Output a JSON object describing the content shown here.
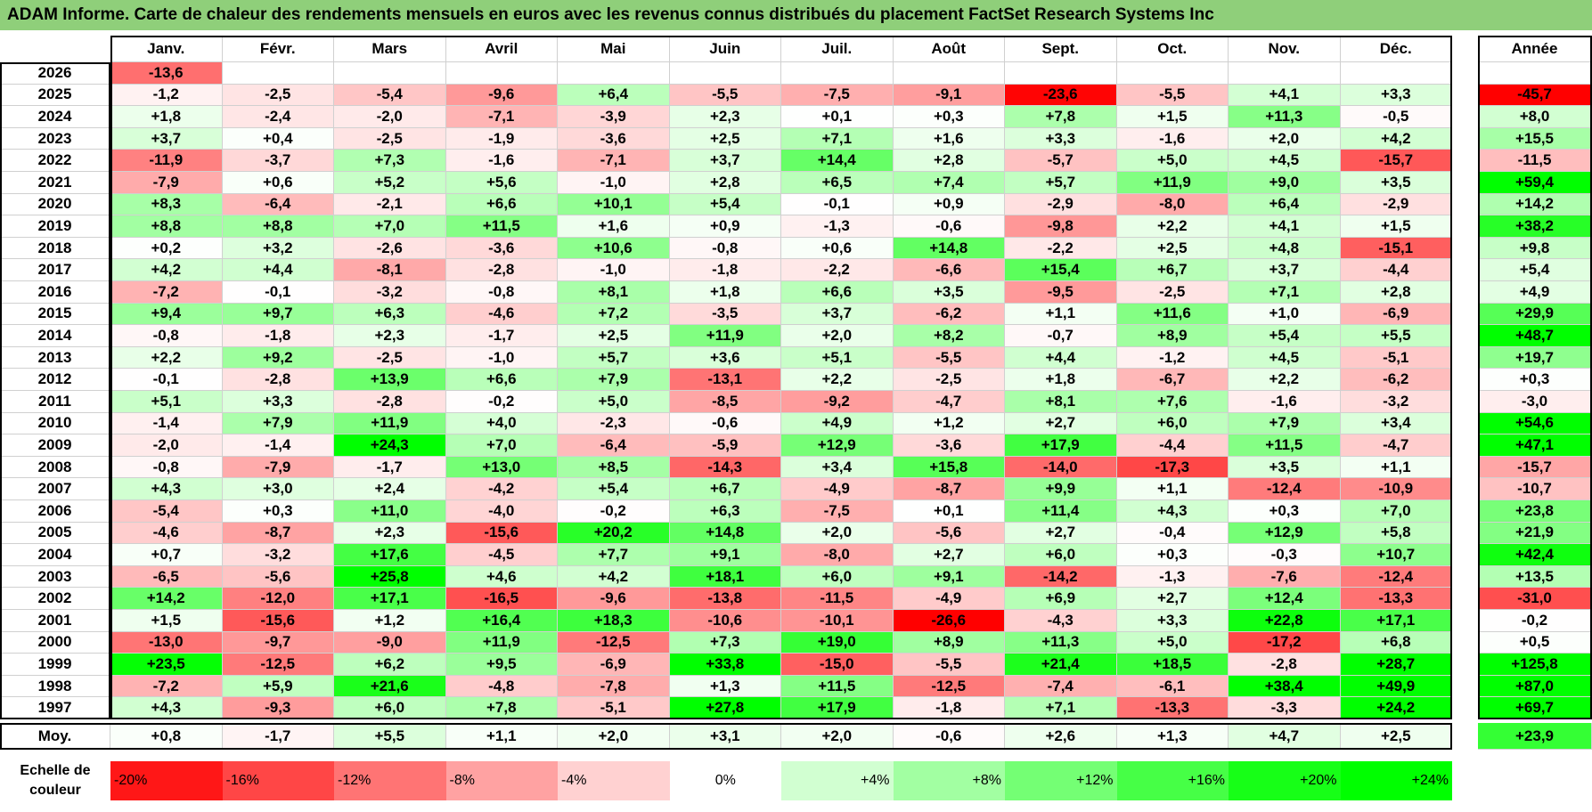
{
  "title": "ADAM Informe. Carte de chaleur des rendements mensuels en euros avec les revenus connus distribués du placement FactSet Research Systems Inc",
  "chart_data": {
    "type": "heatmap",
    "months": [
      "Janv.",
      "Févr.",
      "Mars",
      "Avril",
      "Mai",
      "Juin",
      "Juil.",
      "Août",
      "Sept.",
      "Oct.",
      "Nov.",
      "Déc."
    ],
    "annual_label": "Année",
    "rows": [
      {
        "year": "2026",
        "values": [
          "-13,6",
          "",
          "",
          "",
          "",
          "",
          "",
          "",
          "",
          "",
          "",
          ""
        ],
        "annual": ""
      },
      {
        "year": "2025",
        "values": [
          "-1,2",
          "-2,5",
          "-5,4",
          "-9,6",
          "+6,4",
          "-5,5",
          "-7,5",
          "-9,1",
          "-23,6",
          "-5,5",
          "+4,1",
          "+3,3"
        ],
        "annual": "-45,7"
      },
      {
        "year": "2024",
        "values": [
          "+1,8",
          "-2,4",
          "-2,0",
          "-7,1",
          "-3,9",
          "+2,3",
          "+0,1",
          "+0,3",
          "+7,8",
          "+1,5",
          "+11,3",
          "-0,5"
        ],
        "annual": "+8,0"
      },
      {
        "year": "2023",
        "values": [
          "+3,7",
          "+0,4",
          "-2,5",
          "-1,9",
          "-3,6",
          "+2,5",
          "+7,1",
          "+1,6",
          "+3,3",
          "-1,6",
          "+2,0",
          "+4,2"
        ],
        "annual": "+15,5"
      },
      {
        "year": "2022",
        "values": [
          "-11,9",
          "-3,7",
          "+7,3",
          "-1,6",
          "-7,1",
          "+3,7",
          "+14,4",
          "+2,8",
          "-5,7",
          "+5,0",
          "+4,5",
          "-15,7"
        ],
        "annual": "-11,5"
      },
      {
        "year": "2021",
        "values": [
          "-7,9",
          "+0,6",
          "+5,2",
          "+5,6",
          "-1,0",
          "+2,8",
          "+6,5",
          "+7,4",
          "+5,7",
          "+11,9",
          "+9,0",
          "+3,5"
        ],
        "annual": "+59,4"
      },
      {
        "year": "2020",
        "values": [
          "+8,3",
          "-6,4",
          "-2,1",
          "+6,6",
          "+10,1",
          "+5,4",
          "-0,1",
          "+0,9",
          "-2,9",
          "-8,0",
          "+6,4",
          "-2,9"
        ],
        "annual": "+14,2"
      },
      {
        "year": "2019",
        "values": [
          "+8,8",
          "+8,8",
          "+7,0",
          "+11,5",
          "+1,6",
          "+0,9",
          "-1,3",
          "-0,6",
          "-9,8",
          "+2,2",
          "+4,1",
          "+1,5"
        ],
        "annual": "+38,2"
      },
      {
        "year": "2018",
        "values": [
          "+0,2",
          "+3,2",
          "-2,6",
          "-3,6",
          "+10,6",
          "-0,8",
          "+0,6",
          "+14,8",
          "-2,2",
          "+2,5",
          "+4,8",
          "-15,1"
        ],
        "annual": "+9,8"
      },
      {
        "year": "2017",
        "values": [
          "+4,2",
          "+4,4",
          "-8,1",
          "-2,8",
          "-1,0",
          "-1,8",
          "-2,2",
          "-6,6",
          "+15,4",
          "+6,7",
          "+3,7",
          "-4,4"
        ],
        "annual": "+5,4"
      },
      {
        "year": "2016",
        "values": [
          "-7,2",
          "-0,1",
          "-3,2",
          "-0,8",
          "+8,1",
          "+1,8",
          "+6,6",
          "+3,5",
          "-9,5",
          "-2,5",
          "+7,1",
          "+2,8"
        ],
        "annual": "+4,9"
      },
      {
        "year": "2015",
        "values": [
          "+9,4",
          "+9,7",
          "+6,3",
          "-4,6",
          "+7,2",
          "-3,5",
          "+3,7",
          "-6,2",
          "+1,1",
          "+11,6",
          "+1,0",
          "-6,9"
        ],
        "annual": "+29,9"
      },
      {
        "year": "2014",
        "values": [
          "-0,8",
          "-1,8",
          "+2,3",
          "-1,7",
          "+2,5",
          "+11,9",
          "+2,0",
          "+8,2",
          "-0,7",
          "+8,9",
          "+5,4",
          "+5,5"
        ],
        "annual": "+48,7"
      },
      {
        "year": "2013",
        "values": [
          "+2,2",
          "+9,2",
          "-2,5",
          "-1,0",
          "+5,7",
          "+3,6",
          "+5,1",
          "-5,5",
          "+4,4",
          "-1,2",
          "+4,5",
          "-5,1"
        ],
        "annual": "+19,7"
      },
      {
        "year": "2012",
        "values": [
          "-0,1",
          "-2,8",
          "+13,9",
          "+6,6",
          "+7,9",
          "-13,1",
          "+2,2",
          "-2,5",
          "+1,8",
          "-6,7",
          "+2,2",
          "-6,2"
        ],
        "annual": "+0,3"
      },
      {
        "year": "2011",
        "values": [
          "+5,1",
          "+3,3",
          "-2,8",
          "-0,2",
          "+5,0",
          "-8,5",
          "-9,2",
          "-4,7",
          "+8,1",
          "+7,6",
          "-1,6",
          "-3,2"
        ],
        "annual": "-3,0"
      },
      {
        "year": "2010",
        "values": [
          "-1,4",
          "+7,9",
          "+11,9",
          "+4,0",
          "-2,3",
          "-0,6",
          "+4,9",
          "+1,2",
          "+2,7",
          "+6,0",
          "+7,9",
          "+3,4"
        ],
        "annual": "+54,6"
      },
      {
        "year": "2009",
        "values": [
          "-2,0",
          "-1,4",
          "+24,3",
          "+7,0",
          "-6,4",
          "-5,9",
          "+12,9",
          "-3,6",
          "+17,9",
          "-4,4",
          "+11,5",
          "-4,7"
        ],
        "annual": "+47,1"
      },
      {
        "year": "2008",
        "values": [
          "-0,8",
          "-7,9",
          "-1,7",
          "+13,0",
          "+8,5",
          "-14,3",
          "+3,4",
          "+15,8",
          "-14,0",
          "-17,3",
          "+3,5",
          "+1,1"
        ],
        "annual": "-15,7"
      },
      {
        "year": "2007",
        "values": [
          "+4,3",
          "+3,0",
          "+2,4",
          "-4,2",
          "+5,4",
          "+6,7",
          "-4,9",
          "-8,7",
          "+9,9",
          "+1,1",
          "-12,4",
          "-10,9"
        ],
        "annual": "-10,7"
      },
      {
        "year": "2006",
        "values": [
          "-5,4",
          "+0,3",
          "+11,0",
          "-4,0",
          "-0,2",
          "+6,3",
          "-7,5",
          "+0,1",
          "+11,4",
          "+4,3",
          "+0,3",
          "+7,0"
        ],
        "annual": "+23,8"
      },
      {
        "year": "2005",
        "values": [
          "-4,6",
          "-8,7",
          "+2,3",
          "-15,6",
          "+20,2",
          "+14,8",
          "+2,0",
          "-5,6",
          "+2,7",
          "-0,4",
          "+12,9",
          "+5,8"
        ],
        "annual": "+21,9"
      },
      {
        "year": "2004",
        "values": [
          "+0,7",
          "-3,2",
          "+17,6",
          "-4,5",
          "+7,7",
          "+9,1",
          "-8,0",
          "+2,7",
          "+6,0",
          "+0,3",
          "-0,3",
          "+10,7"
        ],
        "annual": "+42,4"
      },
      {
        "year": "2003",
        "values": [
          "-6,5",
          "-5,6",
          "+25,8",
          "+4,6",
          "+4,2",
          "+18,1",
          "+6,0",
          "+9,1",
          "-14,2",
          "-1,3",
          "-7,6",
          "-12,4"
        ],
        "annual": "+13,5"
      },
      {
        "year": "2002",
        "values": [
          "+14,2",
          "-12,0",
          "+17,1",
          "-16,5",
          "-9,6",
          "-13,8",
          "-11,5",
          "-4,9",
          "+6,9",
          "+2,7",
          "+12,4",
          "-13,3"
        ],
        "annual": "-31,0"
      },
      {
        "year": "2001",
        "values": [
          "+1,5",
          "-15,6",
          "+1,2",
          "+16,4",
          "+18,3",
          "-10,6",
          "-10,1",
          "-26,6",
          "-4,3",
          "+3,3",
          "+22,8",
          "+17,1"
        ],
        "annual": "-0,2"
      },
      {
        "year": "2000",
        "values": [
          "-13,0",
          "-9,7",
          "-9,0",
          "+11,9",
          "-12,5",
          "+7,3",
          "+19,0",
          "+8,9",
          "+11,3",
          "+5,0",
          "-17,2",
          "+6,8"
        ],
        "annual": "+0,5"
      },
      {
        "year": "1999",
        "values": [
          "+23,5",
          "-12,5",
          "+6,2",
          "+9,5",
          "-6,9",
          "+33,8",
          "-15,0",
          "-5,5",
          "+21,4",
          "+18,5",
          "-2,8",
          "+28,7"
        ],
        "annual": "+125,8"
      },
      {
        "year": "1998",
        "values": [
          "-7,2",
          "+5,9",
          "+21,6",
          "-4,8",
          "-7,8",
          "+1,3",
          "+11,5",
          "-12,5",
          "-7,4",
          "-6,1",
          "+38,4",
          "+49,9"
        ],
        "annual": "+87,0"
      },
      {
        "year": "1997",
        "values": [
          "+4,3",
          "-9,3",
          "+6,0",
          "+7,8",
          "-5,1",
          "+27,8",
          "+17,9",
          "-1,8",
          "+7,1",
          "-13,3",
          "-3,3",
          "+24,2"
        ],
        "annual": "+69,7"
      }
    ],
    "average": {
      "label": "Moy.",
      "values": [
        "+0,8",
        "-1,7",
        "+5,5",
        "+1,1",
        "+2,0",
        "+3,1",
        "+2,0",
        "-0,6",
        "+2,6",
        "+1,3",
        "+4,7",
        "+2,5"
      ],
      "annual": "+23,9"
    },
    "legend": {
      "label": "Echelle de couleur",
      "steps": [
        {
          "text": "-20%",
          "value": -20
        },
        {
          "text": "-16%",
          "value": -16
        },
        {
          "text": "-12%",
          "value": -12
        },
        {
          "text": "-8%",
          "value": -8
        },
        {
          "text": "-4%",
          "value": -4
        },
        {
          "text": "0%",
          "value": 0
        },
        {
          "text": "+4%",
          "value": 4
        },
        {
          "text": "+8%",
          "value": 8
        },
        {
          "text": "+12%",
          "value": 12
        },
        {
          "text": "+16%",
          "value": 16
        },
        {
          "text": "+20%",
          "value": 20
        },
        {
          "text": "+24%",
          "value": 24
        }
      ]
    }
  }
}
